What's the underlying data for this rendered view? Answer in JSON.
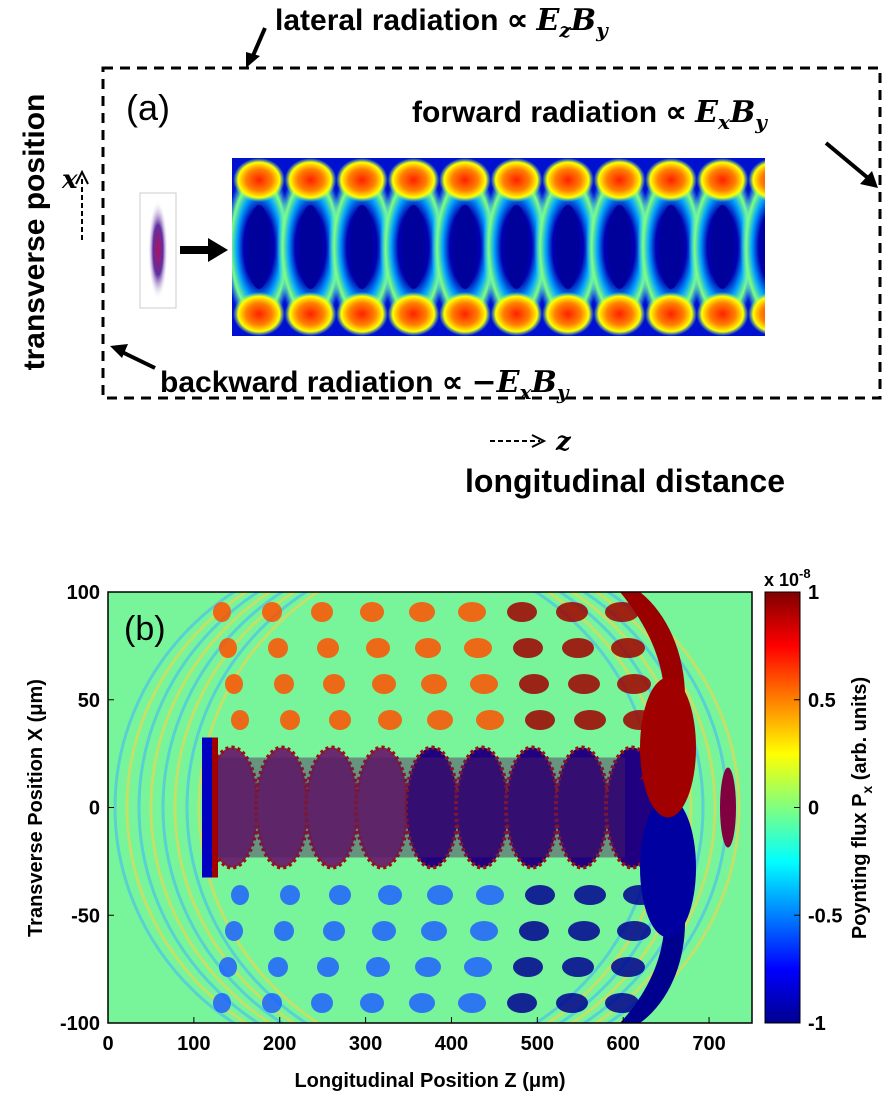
{
  "panel_a": {
    "label": "(a)",
    "lateral": [
      "lateral radiation ∝ ",
      "E",
      "z",
      "B",
      "y"
    ],
    "forward": [
      "forward radiation ∝ ",
      "E",
      "x",
      "B",
      "y"
    ],
    "backward": [
      "backward radiation ∝ ",
      "−E",
      "x",
      "B",
      "y"
    ],
    "y_axis_label": "transverse position",
    "y_axis_symbol": "x",
    "x_axis_label": "longitudinal distance",
    "x_axis_symbol": "z"
  },
  "chart_data": {
    "type": "heatmap",
    "panel_label": "(b)",
    "x_label": "Longitudinal Position Z (μm)",
    "y_label": "Transverse Position X (μm)",
    "xlim": [
      0,
      750
    ],
    "ylim": [
      -100,
      100
    ],
    "xticks": [
      0,
      100,
      200,
      300,
      400,
      500,
      600,
      700
    ],
    "yticks": [
      -100,
      -50,
      0,
      50,
      100
    ],
    "colormap": "jet",
    "colorbar_label": [
      "Poynting flux P",
      "x",
      " (arb. units)"
    ],
    "colorbar_multiplier": [
      "x 10",
      "-8"
    ],
    "clim": [
      -1,
      1
    ],
    "cticks": [
      -1,
      -0.5,
      0,
      0.5,
      1
    ]
  }
}
